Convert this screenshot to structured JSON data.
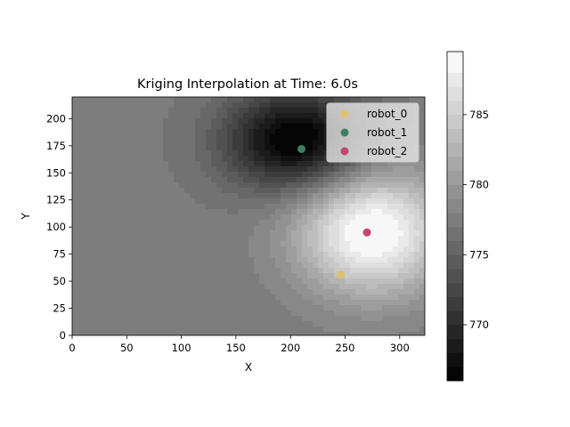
{
  "chart_data": {
    "type": "heatmap",
    "title": "Kriging Interpolation at Time: 6.0s",
    "xlabel": "X",
    "ylabel": "Y",
    "xlim": [
      0,
      323
    ],
    "ylim": [
      0,
      220
    ],
    "xticks": [
      0,
      50,
      100,
      150,
      200,
      250,
      300
    ],
    "yticks": [
      0,
      25,
      50,
      75,
      100,
      125,
      150,
      175,
      200
    ],
    "colormap": "gray",
    "colorbar": {
      "vmin": 766,
      "vmax": 789.5,
      "ticks": [
        770,
        775,
        780,
        785
      ],
      "levels": [
        766,
        767,
        768,
        769,
        770,
        771,
        772,
        773,
        774,
        775,
        776,
        777,
        778,
        779,
        780,
        781,
        782,
        783,
        784,
        785,
        786,
        787,
        788,
        789.5
      ]
    },
    "field": {
      "background": 777.3,
      "features": [
        {
          "kind": "low",
          "center": [
            205,
            180
          ],
          "amplitude": -12,
          "sigma": [
            45,
            32
          ]
        },
        {
          "kind": "high",
          "center": [
            275,
            95
          ],
          "amplitude": 12.5,
          "sigma": [
            48,
            40
          ]
        }
      ]
    },
    "series": [
      {
        "name": "robot_0",
        "color": "#dfc36b",
        "x": [
          246
        ],
        "y": [
          56
        ]
      },
      {
        "name": "robot_1",
        "color": "#3b8062",
        "x": [
          210
        ],
        "y": [
          172
        ]
      },
      {
        "name": "robot_2",
        "color": "#c4456e",
        "x": [
          270
        ],
        "y": [
          95
        ]
      }
    ],
    "legend": "top-right"
  }
}
